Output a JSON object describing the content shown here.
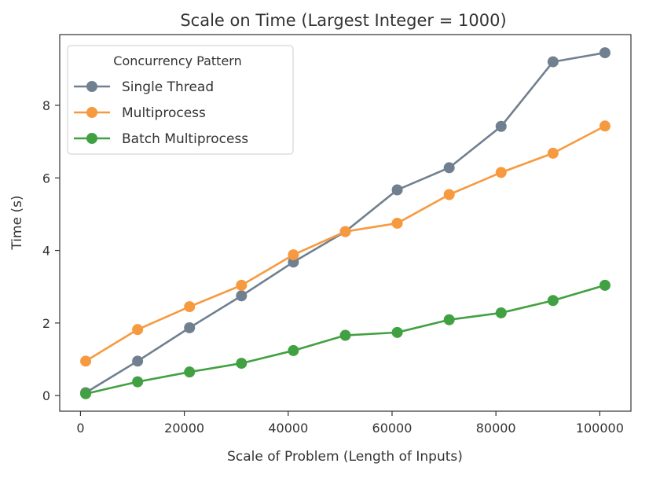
{
  "chart_data": {
    "type": "line",
    "title": "Scale on Time (Largest Integer = 1000)",
    "xlabel": "Scale of Problem (Length of Inputs)",
    "ylabel": "Time (s)",
    "xlim": [
      -4000,
      106000
    ],
    "ylim": [
      -0.43,
      9.95
    ],
    "xticks": [
      0,
      20000,
      40000,
      60000,
      80000,
      100000
    ],
    "xtick_labels": [
      "0",
      "20000",
      "40000",
      "60000",
      "80000",
      "100000"
    ],
    "yticks": [
      0,
      2,
      4,
      6,
      8
    ],
    "ytick_labels": [
      "0",
      "2",
      "4",
      "6",
      "8"
    ],
    "grid": false,
    "legend": {
      "title": "Concurrency Pattern",
      "placement": "top-left"
    },
    "x": [
      1000,
      11000,
      21000,
      31000,
      41000,
      51000,
      61000,
      71000,
      81000,
      91000,
      101000
    ],
    "series": [
      {
        "name": "Single Thread",
        "color": "#708090",
        "values": [
          0.08,
          0.95,
          1.87,
          2.75,
          3.68,
          4.52,
          5.67,
          6.28,
          7.42,
          9.2,
          9.45
        ]
      },
      {
        "name": "Multiprocess",
        "color": "#f79a3f",
        "values": [
          0.95,
          1.82,
          2.45,
          3.04,
          3.88,
          4.52,
          4.75,
          5.54,
          6.15,
          6.68,
          7.43
        ]
      },
      {
        "name": "Batch Multiprocess",
        "color": "#41a142",
        "values": [
          0.05,
          0.38,
          0.65,
          0.89,
          1.24,
          1.66,
          1.74,
          2.09,
          2.28,
          2.62,
          3.04
        ]
      }
    ]
  }
}
